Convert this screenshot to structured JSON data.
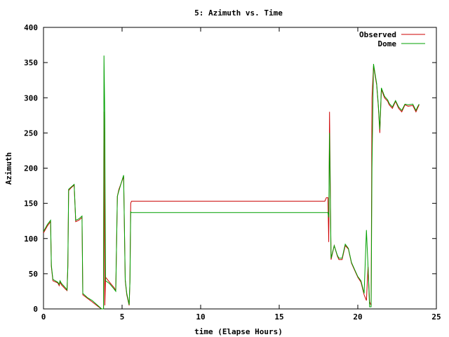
{
  "chart_data": {
    "type": "line",
    "title": "5: Azimuth vs. Time",
    "xlabel": "time (Elapse Hours)",
    "ylabel": "Azimuth",
    "xlim": [
      0,
      25
    ],
    "ylim": [
      0,
      400
    ],
    "xticks": [
      0,
      5,
      10,
      15,
      20,
      25
    ],
    "yticks": [
      0,
      50,
      100,
      150,
      200,
      250,
      300,
      350,
      400
    ],
    "grid": false,
    "legend_position": "top-right",
    "colors": {
      "Observed": "#cc0000",
      "Dome": "#00a000"
    },
    "series": [
      {
        "name": "Observed",
        "points": [
          [
            0.0,
            108
          ],
          [
            0.25,
            118
          ],
          [
            0.45,
            124
          ],
          [
            0.5,
            60
          ],
          [
            0.6,
            40
          ],
          [
            0.9,
            37
          ],
          [
            1.0,
            33
          ],
          [
            1.05,
            38
          ],
          [
            1.15,
            34
          ],
          [
            1.4,
            28
          ],
          [
            1.5,
            26
          ],
          [
            1.55,
            60
          ],
          [
            1.6,
            168
          ],
          [
            1.75,
            172
          ],
          [
            1.95,
            176
          ],
          [
            2.05,
            124
          ],
          [
            2.25,
            126
          ],
          [
            2.45,
            130
          ],
          [
            2.5,
            20
          ],
          [
            2.8,
            15
          ],
          [
            3.1,
            10
          ],
          [
            3.5,
            3
          ],
          [
            3.7,
            0
          ],
          [
            3.82,
            0
          ],
          [
            3.85,
            280
          ],
          [
            3.9,
            5
          ],
          [
            3.95,
            45
          ],
          [
            4.2,
            38
          ],
          [
            4.5,
            30
          ],
          [
            4.6,
            26
          ],
          [
            4.7,
            160
          ],
          [
            4.8,
            170
          ],
          [
            5.1,
            188
          ],
          [
            5.2,
            40
          ],
          [
            5.3,
            20
          ],
          [
            5.45,
            5
          ],
          [
            5.5,
            40
          ],
          [
            5.55,
            150
          ],
          [
            5.6,
            153
          ],
          [
            17.9,
            153
          ],
          [
            18.0,
            158
          ],
          [
            18.1,
            158
          ],
          [
            18.15,
            95
          ],
          [
            18.2,
            280
          ],
          [
            18.3,
            70
          ],
          [
            18.5,
            90
          ],
          [
            18.7,
            75
          ],
          [
            18.8,
            70
          ],
          [
            19.0,
            70
          ],
          [
            19.2,
            90
          ],
          [
            19.4,
            85
          ],
          [
            19.6,
            65
          ],
          [
            19.8,
            55
          ],
          [
            20.0,
            45
          ],
          [
            20.2,
            38
          ],
          [
            20.4,
            20
          ],
          [
            20.55,
            12
          ],
          [
            20.65,
            60
          ],
          [
            20.75,
            10
          ],
          [
            20.85,
            5
          ],
          [
            20.9,
            300
          ],
          [
            21.0,
            345
          ],
          [
            21.2,
            318
          ],
          [
            21.3,
            290
          ],
          [
            21.4,
            250
          ],
          [
            21.5,
            312
          ],
          [
            21.7,
            300
          ],
          [
            21.9,
            295
          ],
          [
            22.0,
            290
          ],
          [
            22.2,
            285
          ],
          [
            22.4,
            295
          ],
          [
            22.6,
            285
          ],
          [
            22.8,
            280
          ],
          [
            23.0,
            290
          ],
          [
            23.2,
            288
          ],
          [
            23.5,
            289
          ],
          [
            23.7,
            280
          ],
          [
            23.8,
            285
          ],
          [
            23.9,
            290
          ]
        ]
      },
      {
        "name": "Dome",
        "points": [
          [
            0.0,
            110
          ],
          [
            0.25,
            120
          ],
          [
            0.45,
            126
          ],
          [
            0.5,
            62
          ],
          [
            0.6,
            42
          ],
          [
            0.9,
            38
          ],
          [
            1.0,
            35
          ],
          [
            1.05,
            40
          ],
          [
            1.15,
            36
          ],
          [
            1.4,
            30
          ],
          [
            1.5,
            27
          ],
          [
            1.55,
            62
          ],
          [
            1.6,
            170
          ],
          [
            1.75,
            173
          ],
          [
            1.95,
            177
          ],
          [
            2.05,
            126
          ],
          [
            2.25,
            128
          ],
          [
            2.45,
            132
          ],
          [
            2.5,
            22
          ],
          [
            2.8,
            16
          ],
          [
            3.1,
            12
          ],
          [
            3.5,
            4
          ],
          [
            3.7,
            0
          ],
          [
            3.82,
            0
          ],
          [
            3.85,
            360
          ],
          [
            3.9,
            270
          ],
          [
            3.95,
            40
          ],
          [
            4.2,
            36
          ],
          [
            4.5,
            28
          ],
          [
            4.6,
            25
          ],
          [
            4.7,
            160
          ],
          [
            4.8,
            168
          ],
          [
            5.1,
            190
          ],
          [
            5.2,
            42
          ],
          [
            5.3,
            22
          ],
          [
            5.45,
            6
          ],
          [
            5.5,
            38
          ],
          [
            5.55,
            138
          ],
          [
            5.6,
            137
          ],
          [
            17.9,
            137
          ],
          [
            18.0,
            137
          ],
          [
            18.1,
            137
          ],
          [
            18.15,
            130
          ],
          [
            18.2,
            250
          ],
          [
            18.3,
            72
          ],
          [
            18.5,
            90
          ],
          [
            18.7,
            76
          ],
          [
            18.8,
            72
          ],
          [
            19.0,
            72
          ],
          [
            19.2,
            92
          ],
          [
            19.4,
            86
          ],
          [
            19.6,
            66
          ],
          [
            19.8,
            56
          ],
          [
            20.0,
            46
          ],
          [
            20.2,
            40
          ],
          [
            20.4,
            22
          ],
          [
            20.55,
            112
          ],
          [
            20.65,
            60
          ],
          [
            20.75,
            3
          ],
          [
            20.85,
            3
          ],
          [
            20.9,
            200
          ],
          [
            21.0,
            348
          ],
          [
            21.2,
            320
          ],
          [
            21.3,
            292
          ],
          [
            21.4,
            255
          ],
          [
            21.5,
            314
          ],
          [
            21.7,
            302
          ],
          [
            21.9,
            297
          ],
          [
            22.0,
            292
          ],
          [
            22.2,
            287
          ],
          [
            22.4,
            296
          ],
          [
            22.6,
            287
          ],
          [
            22.8,
            282
          ],
          [
            23.0,
            291
          ],
          [
            23.2,
            290
          ],
          [
            23.5,
            291
          ],
          [
            23.7,
            282
          ],
          [
            23.8,
            287
          ],
          [
            23.9,
            291
          ]
        ]
      }
    ]
  }
}
